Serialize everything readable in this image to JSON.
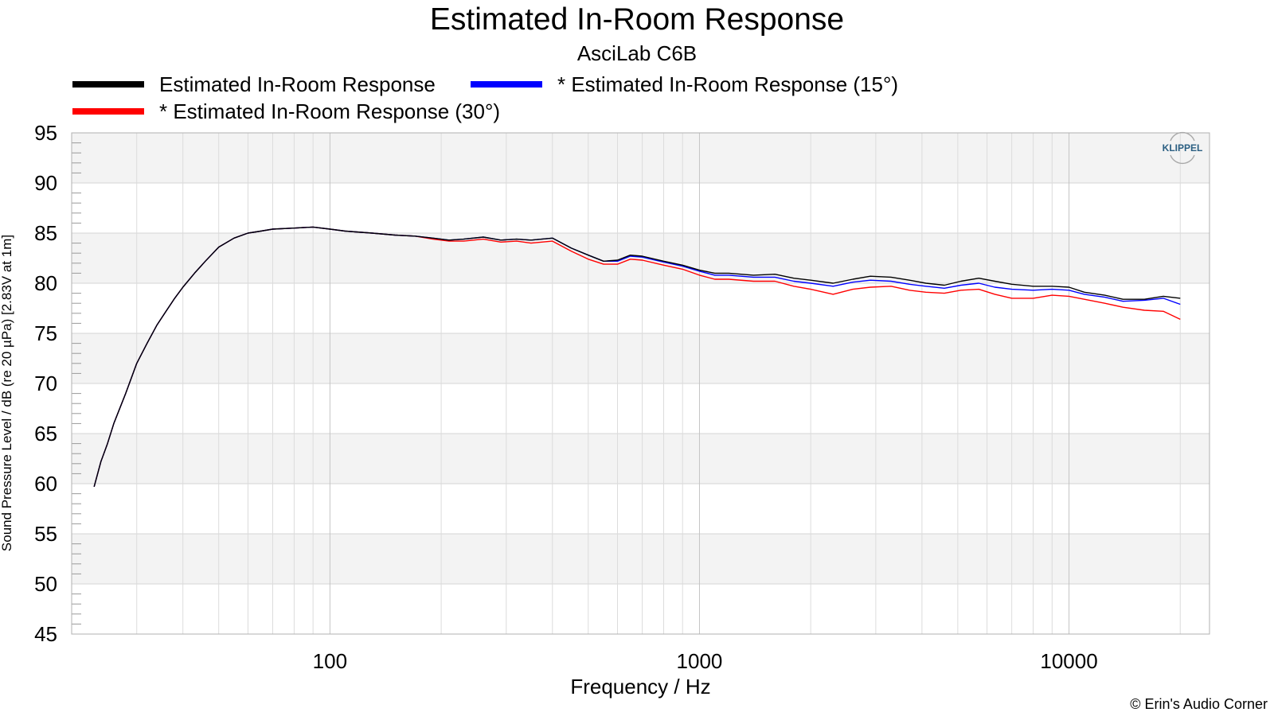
{
  "chart_data": {
    "type": "line",
    "title": "Estimated In-Room Response",
    "subtitle": "AsciLab C6B",
    "xlabel": "Frequency / Hz",
    "ylabel": "Sound Pressure Level / dB (re 20 µPa)  [2.83V at 1m]",
    "x_scale": "log",
    "xlim": [
      20,
      24000
    ],
    "ylim": [
      45,
      95
    ],
    "x_ticks": [
      100,
      1000,
      10000
    ],
    "x_tick_labels": [
      "100",
      "1000",
      "10000"
    ],
    "y_ticks": [
      45,
      50,
      55,
      60,
      65,
      70,
      75,
      80,
      85,
      90,
      95
    ],
    "y_tick_labels": [
      "45",
      "50",
      "55",
      "60",
      "65",
      "70",
      "75",
      "80",
      "85",
      "90",
      "95"
    ],
    "grid": true,
    "legend_position": "top-left",
    "watermark": "KLIPPEL",
    "copyright": "© Erin's Audio Corner",
    "series": [
      {
        "name": "Estimated In-Room Response",
        "color": "#000000",
        "x": [
          23,
          24,
          25,
          26,
          28,
          30,
          32,
          34,
          36,
          38,
          40,
          43,
          46,
          50,
          55,
          60,
          65,
          70,
          80,
          90,
          100,
          110,
          130,
          150,
          170,
          190,
          210,
          230,
          260,
          290,
          320,
          350,
          400,
          450,
          500,
          550,
          600,
          650,
          700,
          800,
          900,
          1000,
          1100,
          1200,
          1400,
          1600,
          1800,
          2000,
          2300,
          2600,
          2900,
          3300,
          3700,
          4100,
          4600,
          5100,
          5700,
          6300,
          7000,
          8000,
          9000,
          10000,
          11000,
          12500,
          14000,
          16000,
          18000,
          20000
        ],
        "y": [
          59.7,
          62.2,
          64.0,
          66.0,
          69.0,
          72.0,
          74.0,
          75.8,
          77.2,
          78.5,
          79.6,
          81.0,
          82.2,
          83.6,
          84.5,
          85.0,
          85.2,
          85.4,
          85.5,
          85.6,
          85.4,
          85.2,
          85.0,
          84.8,
          84.7,
          84.5,
          84.3,
          84.4,
          84.6,
          84.3,
          84.4,
          84.3,
          84.5,
          83.5,
          82.8,
          82.2,
          82.3,
          82.8,
          82.7,
          82.2,
          81.8,
          81.3,
          81.0,
          81.0,
          80.8,
          80.9,
          80.5,
          80.3,
          80.0,
          80.4,
          80.7,
          80.6,
          80.3,
          80.0,
          79.8,
          80.2,
          80.5,
          80.2,
          79.9,
          79.7,
          79.7,
          79.6,
          79.1,
          78.8,
          78.4,
          78.4,
          78.7,
          78.5
        ]
      },
      {
        "name": "* Estimated In-Room Response (15°)",
        "color": "#0000ff",
        "x": [
          23,
          24,
          25,
          26,
          28,
          30,
          32,
          34,
          36,
          38,
          40,
          43,
          46,
          50,
          55,
          60,
          65,
          70,
          80,
          90,
          100,
          110,
          130,
          150,
          170,
          190,
          210,
          230,
          260,
          290,
          320,
          350,
          400,
          450,
          500,
          550,
          600,
          650,
          700,
          800,
          900,
          1000,
          1100,
          1200,
          1400,
          1600,
          1800,
          2000,
          2300,
          2600,
          2900,
          3300,
          3700,
          4100,
          4600,
          5100,
          5700,
          6300,
          7000,
          8000,
          9000,
          10000,
          11000,
          12500,
          14000,
          16000,
          18000,
          20000
        ],
        "y": [
          59.7,
          62.2,
          64.0,
          66.0,
          69.0,
          72.0,
          74.0,
          75.8,
          77.2,
          78.5,
          79.6,
          81.0,
          82.2,
          83.6,
          84.5,
          85.0,
          85.2,
          85.4,
          85.5,
          85.6,
          85.4,
          85.2,
          85.0,
          84.8,
          84.7,
          84.5,
          84.3,
          84.4,
          84.6,
          84.3,
          84.4,
          84.3,
          84.5,
          83.5,
          82.8,
          82.2,
          82.2,
          82.7,
          82.6,
          82.1,
          81.7,
          81.2,
          80.8,
          80.8,
          80.6,
          80.6,
          80.2,
          80.0,
          79.7,
          80.1,
          80.3,
          80.2,
          79.9,
          79.7,
          79.5,
          79.8,
          80.0,
          79.6,
          79.4,
          79.3,
          79.4,
          79.3,
          78.9,
          78.6,
          78.2,
          78.3,
          78.5,
          77.9
        ]
      },
      {
        "name": "* Estimated In-Room Response (30°)",
        "color": "#ff0000",
        "x": [
          23,
          24,
          25,
          26,
          28,
          30,
          32,
          34,
          36,
          38,
          40,
          43,
          46,
          50,
          55,
          60,
          65,
          70,
          80,
          90,
          100,
          110,
          130,
          150,
          170,
          190,
          210,
          230,
          260,
          290,
          320,
          350,
          400,
          450,
          500,
          550,
          600,
          650,
          700,
          800,
          900,
          1000,
          1100,
          1200,
          1400,
          1600,
          1800,
          2000,
          2300,
          2600,
          2900,
          3300,
          3700,
          4100,
          4600,
          5100,
          5700,
          6300,
          7000,
          8000,
          9000,
          10000,
          11000,
          12500,
          14000,
          16000,
          18000,
          20000
        ],
        "y": [
          59.7,
          62.2,
          64.0,
          66.0,
          69.0,
          72.0,
          74.0,
          75.8,
          77.2,
          78.5,
          79.6,
          81.0,
          82.2,
          83.6,
          84.5,
          85.0,
          85.2,
          85.4,
          85.5,
          85.6,
          85.4,
          85.2,
          85.0,
          84.8,
          84.7,
          84.4,
          84.2,
          84.2,
          84.4,
          84.1,
          84.2,
          84.0,
          84.2,
          83.2,
          82.4,
          81.9,
          81.9,
          82.4,
          82.3,
          81.8,
          81.4,
          80.8,
          80.4,
          80.4,
          80.2,
          80.2,
          79.7,
          79.4,
          78.9,
          79.4,
          79.6,
          79.7,
          79.3,
          79.1,
          79.0,
          79.3,
          79.4,
          78.9,
          78.5,
          78.5,
          78.8,
          78.7,
          78.4,
          78.0,
          77.6,
          77.3,
          77.2,
          76.4
        ]
      }
    ]
  }
}
